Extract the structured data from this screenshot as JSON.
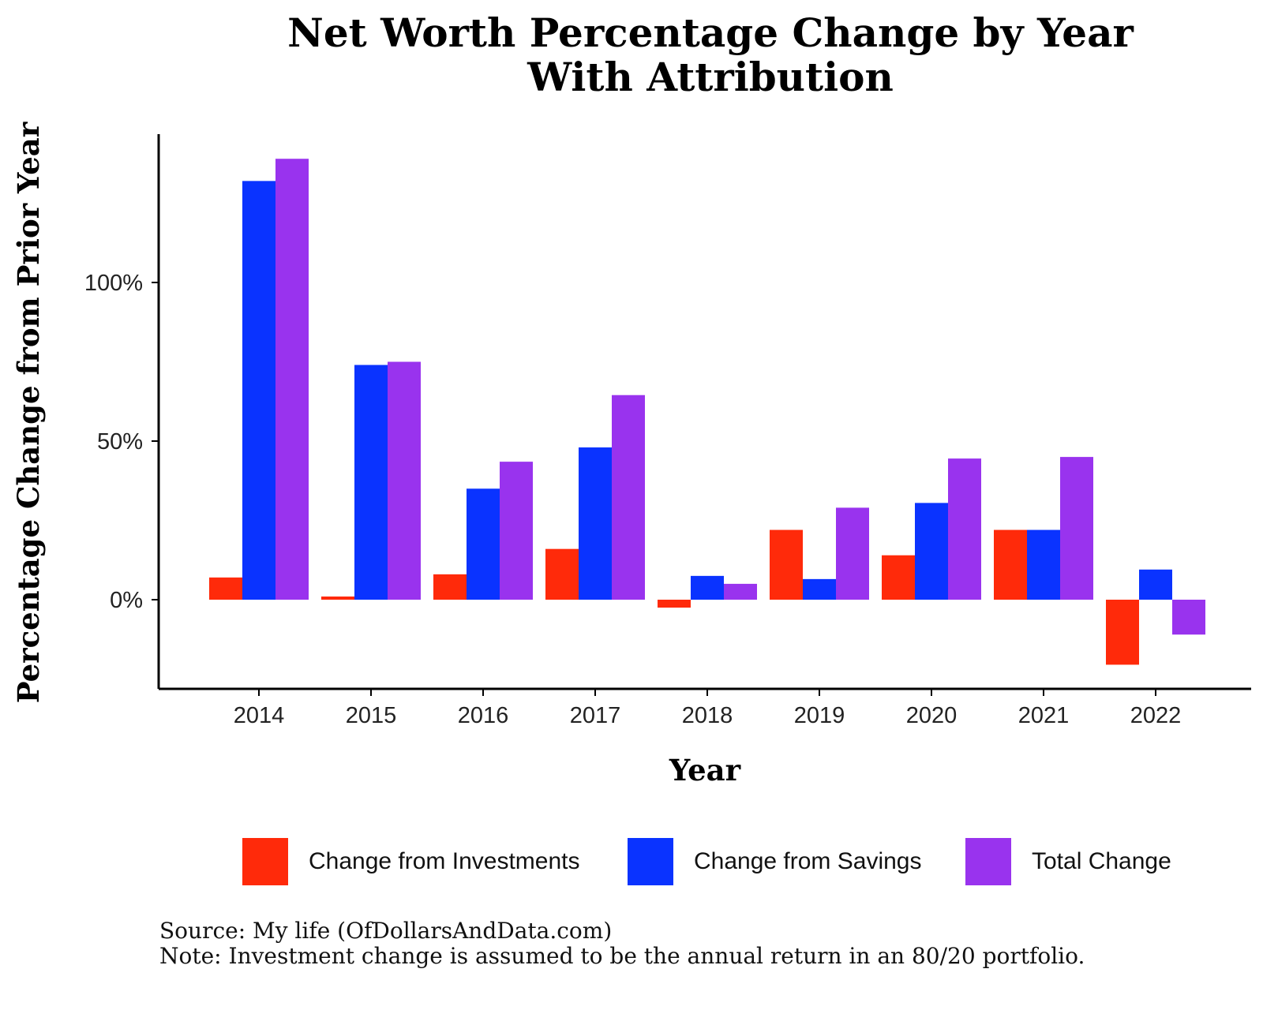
{
  "chart_data": {
    "type": "bar",
    "title": "Net Worth Percentage Change by Year",
    "subtitle": "With Attribution",
    "xlabel": "Year",
    "ylabel": "Percentage Change from Prior Year",
    "categories": [
      "2014",
      "2015",
      "2016",
      "2017",
      "2018",
      "2019",
      "2020",
      "2021",
      "2022"
    ],
    "series": [
      {
        "name": "Change from Investments",
        "color": "#ff2a0a",
        "values": [
          7,
          1,
          8,
          16,
          -2.5,
          22,
          14,
          22,
          -20.5
        ]
      },
      {
        "name": "Change from Savings",
        "color": "#0a33ff",
        "values": [
          132,
          74,
          35,
          48,
          7.5,
          6.5,
          30.5,
          22,
          9.5
        ]
      },
      {
        "name": "Total Change",
        "color": "#9933ee",
        "values": [
          139,
          75,
          43.5,
          64.5,
          5,
          29,
          44.5,
          45,
          -11
        ]
      }
    ],
    "ylim": [
      -28,
      147
    ],
    "yticks": [
      0,
      50,
      100
    ],
    "ytick_labels": [
      "0%",
      "50%",
      "100%"
    ],
    "grid": false,
    "legend_position": "bottom"
  },
  "footer": {
    "source": "Source: My life (OfDollarsAndData.com)",
    "note": "Note: Investment change is assumed to be the annual return in an 80/20 portfolio."
  }
}
